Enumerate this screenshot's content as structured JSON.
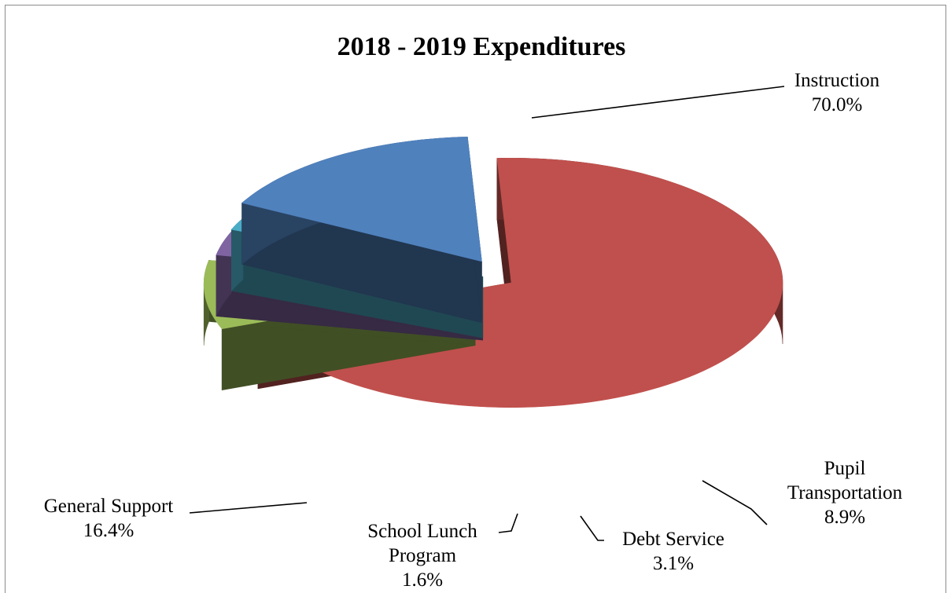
{
  "chart_data": {
    "type": "pie",
    "title": "2018 - 2019 Expenditures",
    "slices": [
      {
        "name": "Instruction",
        "label_lines": [
          "Instruction"
        ],
        "percent_label": "70.0%",
        "value": 70.0,
        "color": "#c0504d"
      },
      {
        "name": "Pupil Transportation",
        "label_lines": [
          "Pupil",
          "Transportation"
        ],
        "percent_label": "8.9%",
        "value": 8.9,
        "color": "#9bbb59"
      },
      {
        "name": "Debt Service",
        "label_lines": [
          "Debt Service"
        ],
        "percent_label": "3.1%",
        "value": 3.1,
        "color": "#8064a2"
      },
      {
        "name": "School Lunch Program",
        "label_lines": [
          "School Lunch",
          "Program"
        ],
        "percent_label": "1.6%",
        "value": 1.6,
        "color": "#4bacc6"
      },
      {
        "name": "General Support",
        "label_lines": [
          "General Support"
        ],
        "percent_label": "16.4%",
        "value": 16.4,
        "color": "#4f81bd"
      }
    ],
    "style": "3d-exploded",
    "legend": "none"
  }
}
